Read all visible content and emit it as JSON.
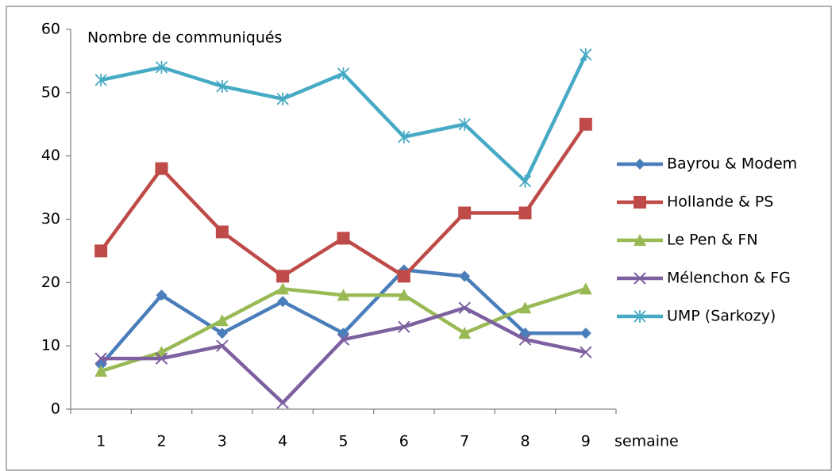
{
  "chart_data": {
    "type": "line",
    "title": "Nombre de communiqués",
    "x_label": "semaine",
    "categories": [
      "1",
      "2",
      "3",
      "4",
      "5",
      "6",
      "7",
      "8",
      "9"
    ],
    "series": [
      {
        "name": "Bayrou & Modem",
        "color": "#4a7ebb",
        "marker": "diamond",
        "values": [
          7,
          18,
          12,
          17,
          12,
          22,
          21,
          12,
          12
        ]
      },
      {
        "name": "Hollande & PS",
        "color": "#be4b48",
        "marker": "square",
        "values": [
          25,
          38,
          28,
          21,
          27,
          21,
          31,
          31,
          45
        ]
      },
      {
        "name": "Le Pen & FN",
        "color": "#98b954",
        "marker": "triangle",
        "values": [
          6,
          9,
          14,
          19,
          18,
          18,
          12,
          16,
          19
        ]
      },
      {
        "name": "Mélenchon & FG",
        "color": "#7d60a0",
        "marker": "x",
        "values": [
          8,
          8,
          10,
          1,
          11,
          13,
          16,
          11,
          9
        ]
      },
      {
        "name": "UMP (Sarkozy)",
        "color": "#46aac5",
        "marker": "star",
        "values": [
          52,
          54,
          51,
          49,
          53,
          43,
          45,
          36,
          56
        ]
      }
    ],
    "ylim": [
      0,
      60
    ],
    "yticks": [
      0,
      10,
      20,
      30,
      40,
      50,
      60
    ],
    "grid": false,
    "legend": "right"
  }
}
